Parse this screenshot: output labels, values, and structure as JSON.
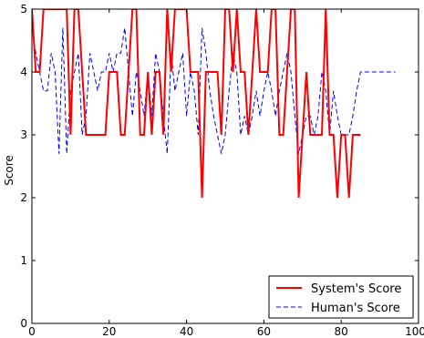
{
  "chart_data": {
    "type": "line",
    "title": "",
    "xlabel": "",
    "ylabel": "Score",
    "xlim": [
      0,
      100
    ],
    "ylim": [
      0,
      5
    ],
    "xticks": [
      0,
      20,
      40,
      60,
      80,
      100
    ],
    "yticks": [
      0,
      1,
      2,
      3,
      4,
      5
    ],
    "xtick_labels": [
      "0",
      "20",
      "40",
      "60",
      "80",
      "100"
    ],
    "ytick_labels": [
      "0",
      "1",
      "2",
      "3",
      "4",
      "5"
    ],
    "grid": false,
    "legend_position": "bottom-right",
    "series": [
      {
        "name": "System's Score",
        "color": "#ff0000",
        "style": "solid",
        "x": [
          0,
          1,
          2,
          3,
          4,
          5,
          6,
          7,
          8,
          9,
          10,
          11,
          12,
          13,
          14,
          15,
          16,
          17,
          18,
          19,
          20,
          21,
          22,
          23,
          24,
          25,
          26,
          27,
          28,
          29,
          30,
          31,
          32,
          33,
          34,
          35,
          36,
          37,
          38,
          39,
          40,
          41,
          42,
          43,
          44,
          45,
          46,
          47,
          48,
          49,
          50,
          51,
          52,
          53,
          54,
          55,
          56,
          57,
          58,
          59,
          60,
          61,
          62,
          63,
          64,
          65,
          66,
          67,
          68,
          69,
          70,
          71,
          72,
          73,
          74,
          75,
          76,
          77,
          78,
          79,
          80,
          81,
          82,
          83,
          84,
          85
        ],
        "y": [
          5,
          4,
          4,
          5,
          5,
          5,
          5,
          5,
          5,
          5,
          3,
          5,
          5,
          4,
          3,
          3,
          3,
          3,
          3,
          3,
          4,
          4,
          4,
          3,
          3,
          4,
          5,
          5,
          3,
          3,
          4,
          3,
          4,
          4,
          3,
          5,
          4,
          5,
          5,
          5,
          5,
          4,
          4,
          4,
          2,
          4,
          4,
          4,
          4,
          3,
          5,
          5,
          4,
          5,
          4,
          4,
          3,
          4,
          5,
          4,
          4,
          4,
          5,
          5,
          3,
          3,
          4,
          5,
          5,
          2,
          3,
          4,
          3,
          3,
          3,
          3,
          5,
          3,
          3,
          2,
          3,
          3,
          2,
          3,
          3,
          3
        ]
      },
      {
        "name": "Human's Score",
        "color": "#0000ff",
        "style": "dashed",
        "x": [
          0,
          1,
          2,
          3,
          4,
          5,
          6,
          7,
          8,
          9,
          10,
          11,
          12,
          13,
          14,
          15,
          16,
          17,
          18,
          19,
          20,
          21,
          22,
          23,
          24,
          25,
          26,
          27,
          28,
          29,
          30,
          31,
          32,
          33,
          34,
          35,
          36,
          37,
          38,
          39,
          40,
          41,
          42,
          43,
          44,
          45,
          46,
          47,
          48,
          49,
          50,
          51,
          52,
          53,
          54,
          55,
          56,
          57,
          58,
          59,
          60,
          61,
          62,
          63,
          64,
          65,
          66,
          67,
          68,
          69,
          70,
          71,
          72,
          73,
          74,
          75,
          76,
          77,
          78,
          79,
          80,
          81,
          82,
          83,
          84,
          85,
          86,
          87,
          88,
          89,
          90,
          91,
          92,
          93,
          94
        ],
        "y": [
          4.7,
          4.3,
          4,
          3.7,
          3.7,
          4.3,
          4,
          2.7,
          4.7,
          2.7,
          3.7,
          4,
          4.3,
          3,
          3.3,
          4.3,
          4,
          3.7,
          4,
          4,
          4.3,
          4,
          4.3,
          4.3,
          4.7,
          4,
          3.3,
          4,
          3.7,
          3.3,
          4,
          3.3,
          4.3,
          4,
          3.3,
          2.7,
          4.3,
          3.7,
          4,
          4.3,
          3.3,
          4,
          3.7,
          3,
          4.7,
          4.3,
          3.7,
          3.3,
          3,
          2.7,
          3,
          3.7,
          4.3,
          4,
          3,
          3.3,
          3,
          3.3,
          3.7,
          3.3,
          3.7,
          4,
          3.7,
          3.3,
          3.7,
          4,
          4.3,
          4,
          3.3,
          2.7,
          3,
          3.3,
          3.3,
          3,
          3.3,
          4,
          3.7,
          3,
          3.7,
          3.3,
          3,
          3,
          3,
          3.3,
          3.7,
          4,
          4,
          4,
          4,
          4,
          4,
          4,
          4,
          4,
          4
        ]
      }
    ]
  }
}
